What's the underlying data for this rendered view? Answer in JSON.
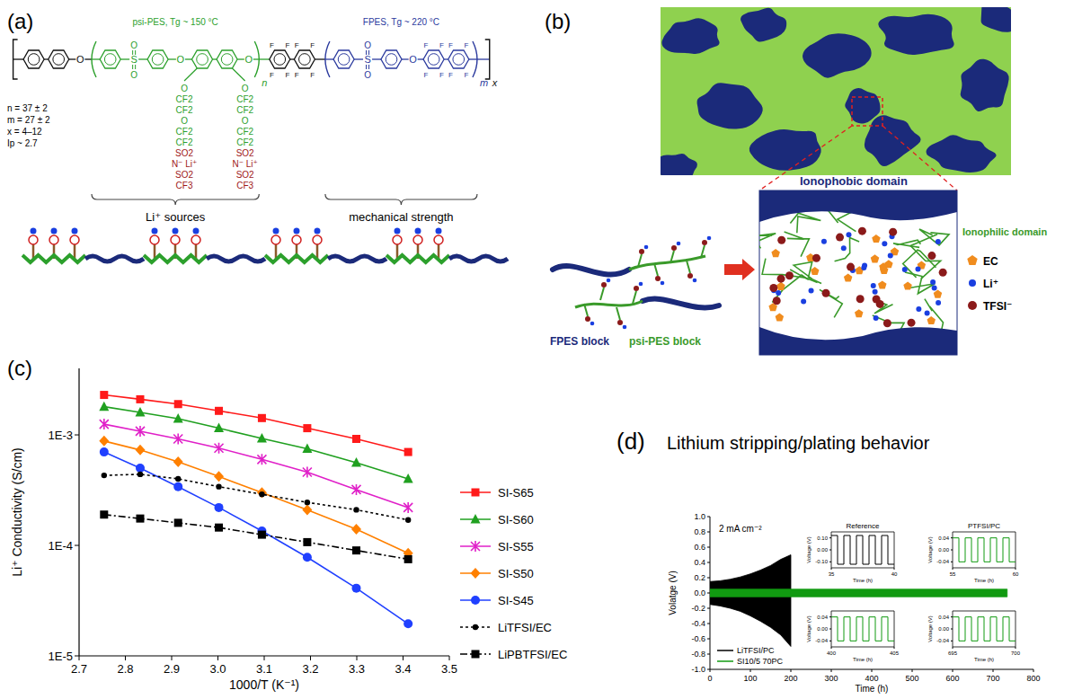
{
  "panel_labels": [
    "(a)",
    "(b)",
    "(c)",
    "(d)"
  ],
  "structure": {
    "blocks": [
      {
        "label": "psi-PES, Tg ~ 150 °C",
        "color": "#2ca02c"
      },
      {
        "label": "FPES, Tg ~ 220 °C",
        "color": "#2b3a9e"
      }
    ],
    "parameters": [
      "n = 37 ± 2",
      "m = 27 ± 2",
      "x = 4–12",
      "Ip ~ 2.7"
    ],
    "repeat_subscripts": [
      "n",
      "m",
      "x"
    ],
    "atoms": {
      "oxygen": "O",
      "sulfur": "S",
      "fluorine": "F"
    },
    "side_chain": [
      "O",
      "CF2",
      "CF2",
      "O",
      "CF2",
      "CF2",
      "SO2",
      "N⁻ Li⁺",
      "SO2",
      "CF3"
    ],
    "braces": [
      "Li⁺ sources",
      "mechanical strength"
    ]
  },
  "morphology": {
    "ionophobic": "Ionophobic domain",
    "ionophilic": "Ionophilic domain",
    "legend": [
      {
        "label": "EC",
        "color": "#f08c1e"
      },
      {
        "label": "Li⁺",
        "color": "#1a3fe0"
      },
      {
        "label": "TFSI⁻",
        "color": "#8b1a1a"
      }
    ],
    "blocks": [
      "FPES block",
      "psi-PES block"
    ]
  },
  "chart_data": [
    {
      "type": "line",
      "xlabel": "1000/T (K⁻¹)",
      "ylabel": "Li⁺ Conductivity (S/cm)",
      "log": "y",
      "legend": "right",
      "x": [
        2.754,
        2.832,
        2.914,
        3.002,
        3.095,
        3.193,
        3.299,
        3.411
      ],
      "xlim": [
        2.7,
        3.5
      ],
      "ylim": [
        1e-05,
        0.004
      ],
      "xticks": [
        2.7,
        2.8,
        2.9,
        {
          "value": 3,
          "label": "3.0"
        },
        3.1,
        3.2,
        3.3,
        3.4,
        3.5
      ],
      "yticks": [
        {
          "value": 1e-05,
          "label": "1E-5"
        },
        {
          "value": 0.0001,
          "label": "1E-4"
        },
        {
          "value": 0.001,
          "label": "1E-3"
        }
      ],
      "series": [
        {
          "name": "SI-S65",
          "color": "#ff1a1a",
          "marker": "square",
          "line_style": "solid",
          "values": [
            0.0023,
            0.0021,
            0.0019,
            0.00165,
            0.00142,
            0.00115,
            0.00092,
            0.0007
          ]
        },
        {
          "name": "SI-S60",
          "color": "#20a020",
          "marker": "triangle",
          "line_style": "solid",
          "values": [
            0.0018,
            0.0016,
            0.0014,
            0.00115,
            0.00093,
            0.00075,
            0.00056,
            0.0004
          ]
        },
        {
          "name": "SI-S55",
          "color": "#e020c8",
          "marker": "asterisk",
          "line_style": "solid",
          "values": [
            0.00125,
            0.00108,
            0.00092,
            0.00076,
            0.0006,
            0.00046,
            0.00032,
            0.00022
          ]
        },
        {
          "name": "SI-S50",
          "color": "#ff8000",
          "marker": "diamond",
          "line_style": "solid",
          "values": [
            0.00088,
            0.00073,
            0.00057,
            0.00042,
            0.0003,
            0.00021,
            0.00014,
            8.5e-05
          ]
        },
        {
          "name": "SI-S45",
          "color": "#2040ff",
          "marker": "circle",
          "line_style": "solid",
          "values": [
            0.0007,
            0.0005,
            0.00034,
            0.00022,
            0.000135,
            7.8e-05,
            4.1e-05,
            1.95e-05
          ]
        },
        {
          "name": "LiTFSI/EC",
          "color": "#000000",
          "marker": "dot",
          "line_style": "dotted",
          "values": [
            0.00043,
            0.00044,
            0.0004,
            0.00034,
            0.00029,
            0.000245,
            0.00021,
            0.00017
          ]
        },
        {
          "name": "LiPBTFSI/EC",
          "color": "#000000",
          "marker": "square",
          "line_style": "dashdot",
          "values": [
            0.00019,
            0.000175,
            0.00016,
            0.000145,
            0.000125,
            0.000107,
            9e-05,
            7.5e-05
          ]
        }
      ]
    },
    {
      "type": "band",
      "title": "Lithium stripping/plating behavior",
      "xlabel": "Time (h)",
      "ylabel": "Volatge (V)",
      "annotations": [
        "2 mA cm⁻²"
      ],
      "legend": "lower left",
      "xlim": [
        0,
        800
      ],
      "ylim": [
        -1,
        1
      ],
      "xticks": [
        0,
        100,
        200,
        300,
        400,
        500,
        600,
        700,
        800
      ],
      "yticks": [
        {
          "value": -1,
          "label": "-1.0"
        },
        -0.8,
        -0.6,
        -0.4,
        -0.2,
        {
          "value": 0,
          "label": "0.0"
        },
        0.2,
        0.4,
        0.6,
        0.8,
        {
          "value": 1,
          "label": "1.0"
        }
      ],
      "series": [
        {
          "name": "LiTFSI/PC",
          "color": "#000000",
          "x": [
            0,
            25,
            50,
            75,
            100,
            125,
            150,
            175,
            200
          ],
          "values": [
            0.15,
            0.16,
            0.18,
            0.21,
            0.25,
            0.3,
            0.36,
            0.44,
            0.5
          ],
          "lower": [
            -0.15,
            -0.17,
            -0.2,
            -0.24,
            -0.3,
            -0.37,
            -0.45,
            -0.55,
            -0.7
          ]
        },
        {
          "name": "SI10/5 70PC",
          "color": "#119a11",
          "x": [
            0,
            735
          ],
          "values": [
            0.05,
            0.05
          ],
          "lower": [
            -0.05,
            -0.05
          ]
        }
      ]
    },
    {
      "type": "line",
      "title": "Reference",
      "xlabel": "Time (h)",
      "ylabel": "Voltage (V)",
      "xlim": [
        35,
        40
      ],
      "ylim": [
        -0.15,
        0.15
      ],
      "xticks": [
        35,
        40
      ],
      "yticks": [
        {
          "value": -0.1,
          "label": "-0.10"
        },
        {
          "value": 0,
          "label": "0.00"
        },
        {
          "value": 0.1,
          "label": "0.10"
        }
      ],
      "series": [
        {
          "color": "#000000",
          "x": [
            35,
            35.5,
            35.5,
            36,
            36,
            36.5,
            36.5,
            37,
            37,
            37.5,
            37.5,
            38,
            38,
            38.5,
            38.5,
            39,
            39,
            39.5,
            39.5,
            40
          ],
          "values": [
            0.12,
            0.12,
            -0.12,
            -0.12,
            0.12,
            0.12,
            -0.12,
            -0.12,
            0.12,
            0.12,
            -0.12,
            -0.12,
            0.12,
            0.12,
            -0.12,
            -0.12,
            0.12,
            0.12,
            -0.12,
            -0.12
          ]
        }
      ]
    },
    {
      "type": "line",
      "title": "PTFSI/PC",
      "xlabel": "Time (h)",
      "ylabel": "Voltage (V)",
      "xlim": [
        55,
        60
      ],
      "ylim": [
        -0.06,
        0.06
      ],
      "xticks": [
        55,
        60
      ],
      "yticks": [
        -0.04,
        {
          "value": 0,
          "label": "0.00"
        },
        0.04
      ],
      "series": [
        {
          "color": "#119a11",
          "x": [
            55,
            55.5,
            55.5,
            56,
            56,
            56.5,
            56.5,
            57,
            57,
            57.5,
            57.5,
            58,
            58,
            58.5,
            58.5,
            59,
            59,
            59.5,
            59.5,
            60
          ],
          "values": [
            0.04,
            0.04,
            -0.04,
            -0.04,
            0.04,
            0.04,
            -0.04,
            -0.04,
            0.04,
            0.04,
            -0.04,
            -0.04,
            0.04,
            0.04,
            -0.04,
            -0.04,
            0.04,
            0.04,
            -0.04,
            -0.04
          ]
        }
      ]
    },
    {
      "type": "line",
      "xlabel": "Time (h)",
      "ylabel": "Voltage (V)",
      "xlim": [
        400,
        405
      ],
      "ylim": [
        -0.06,
        0.06
      ],
      "xticks": [
        400,
        405
      ],
      "yticks": [
        -0.04,
        {
          "value": 0,
          "label": "0.00"
        },
        0.04
      ],
      "series": [
        {
          "color": "#119a11",
          "x": [
            400,
            400.5,
            400.5,
            401,
            401,
            401.5,
            401.5,
            402,
            402,
            402.5,
            402.5,
            403,
            403,
            403.5,
            403.5,
            404,
            404,
            404.5,
            404.5,
            405
          ],
          "values": [
            0.04,
            0.04,
            -0.04,
            -0.04,
            0.04,
            0.04,
            -0.04,
            -0.04,
            0.04,
            0.04,
            -0.04,
            -0.04,
            0.04,
            0.04,
            -0.04,
            -0.04,
            0.04,
            0.04,
            -0.04,
            -0.04
          ]
        }
      ]
    },
    {
      "type": "line",
      "xlabel": "Time (h)",
      "ylabel": "Voltage (V)",
      "xlim": [
        695,
        700
      ],
      "ylim": [
        -0.06,
        0.06
      ],
      "xticks": [
        695,
        700
      ],
      "yticks": [
        -0.04,
        {
          "value": 0,
          "label": "0.00"
        },
        0.04
      ],
      "series": [
        {
          "color": "#119a11",
          "x": [
            695,
            695.5,
            695.5,
            696,
            696,
            696.5,
            696.5,
            697,
            697,
            697.5,
            697.5,
            698,
            698,
            698.5,
            698.5,
            699,
            699,
            699.5,
            699.5,
            700
          ],
          "values": [
            0.04,
            0.04,
            -0.04,
            -0.04,
            0.04,
            0.04,
            -0.04,
            -0.04,
            0.04,
            0.04,
            -0.04,
            -0.04,
            0.04,
            0.04,
            -0.04,
            -0.04,
            0.04,
            0.04,
            -0.04,
            -0.04
          ]
        }
      ]
    }
  ]
}
